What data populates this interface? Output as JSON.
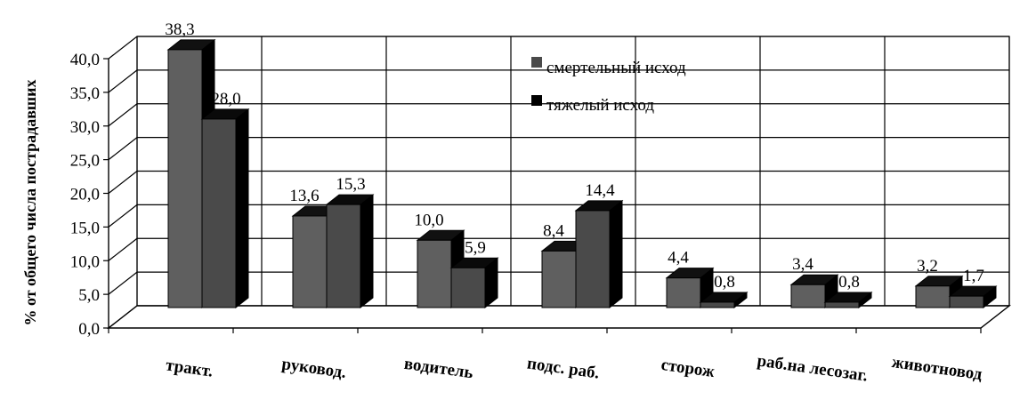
{
  "chart_data": {
    "type": "bar",
    "style": "3d-clustered",
    "title": "",
    "ylabel": "% от общего числа пострадавших",
    "xlabel": "",
    "ylim": [
      0,
      40
    ],
    "ytick_step": 5,
    "ytick_labels": [
      "0,0",
      "5,0",
      "10,0",
      "15,0",
      "20,0",
      "25,0",
      "30,0",
      "35,0",
      "40,0"
    ],
    "grid": true,
    "legend_position": "top-right",
    "categories": [
      "тракт.",
      "руковод.",
      "водитель",
      "подс. раб.",
      "сторож",
      "раб.на лесозаг.",
      "животновод"
    ],
    "series": [
      {
        "name": "смертельный исход",
        "values": [
          38.3,
          13.6,
          10.0,
          8.4,
          4.4,
          3.4,
          3.2
        ],
        "labels": [
          "38,3",
          "13,6",
          "10,0",
          "8,4",
          "4,4",
          "3,4",
          "3,2"
        ],
        "front": "#5f5f5f",
        "top": "#111111",
        "side": "#000000",
        "legend_color": "#4a4a4a"
      },
      {
        "name": "тяжелый исход",
        "values": [
          28.0,
          15.3,
          5.9,
          14.4,
          0.8,
          0.8,
          1.7
        ],
        "labels": [
          "28,0",
          "15,3",
          "5,9",
          "14,4",
          "0,8",
          "0,8",
          "1,7"
        ],
        "front": "#4a4a4a",
        "top": "#0a0a0a",
        "side": "#000000",
        "legend_color": "#000000"
      }
    ]
  }
}
